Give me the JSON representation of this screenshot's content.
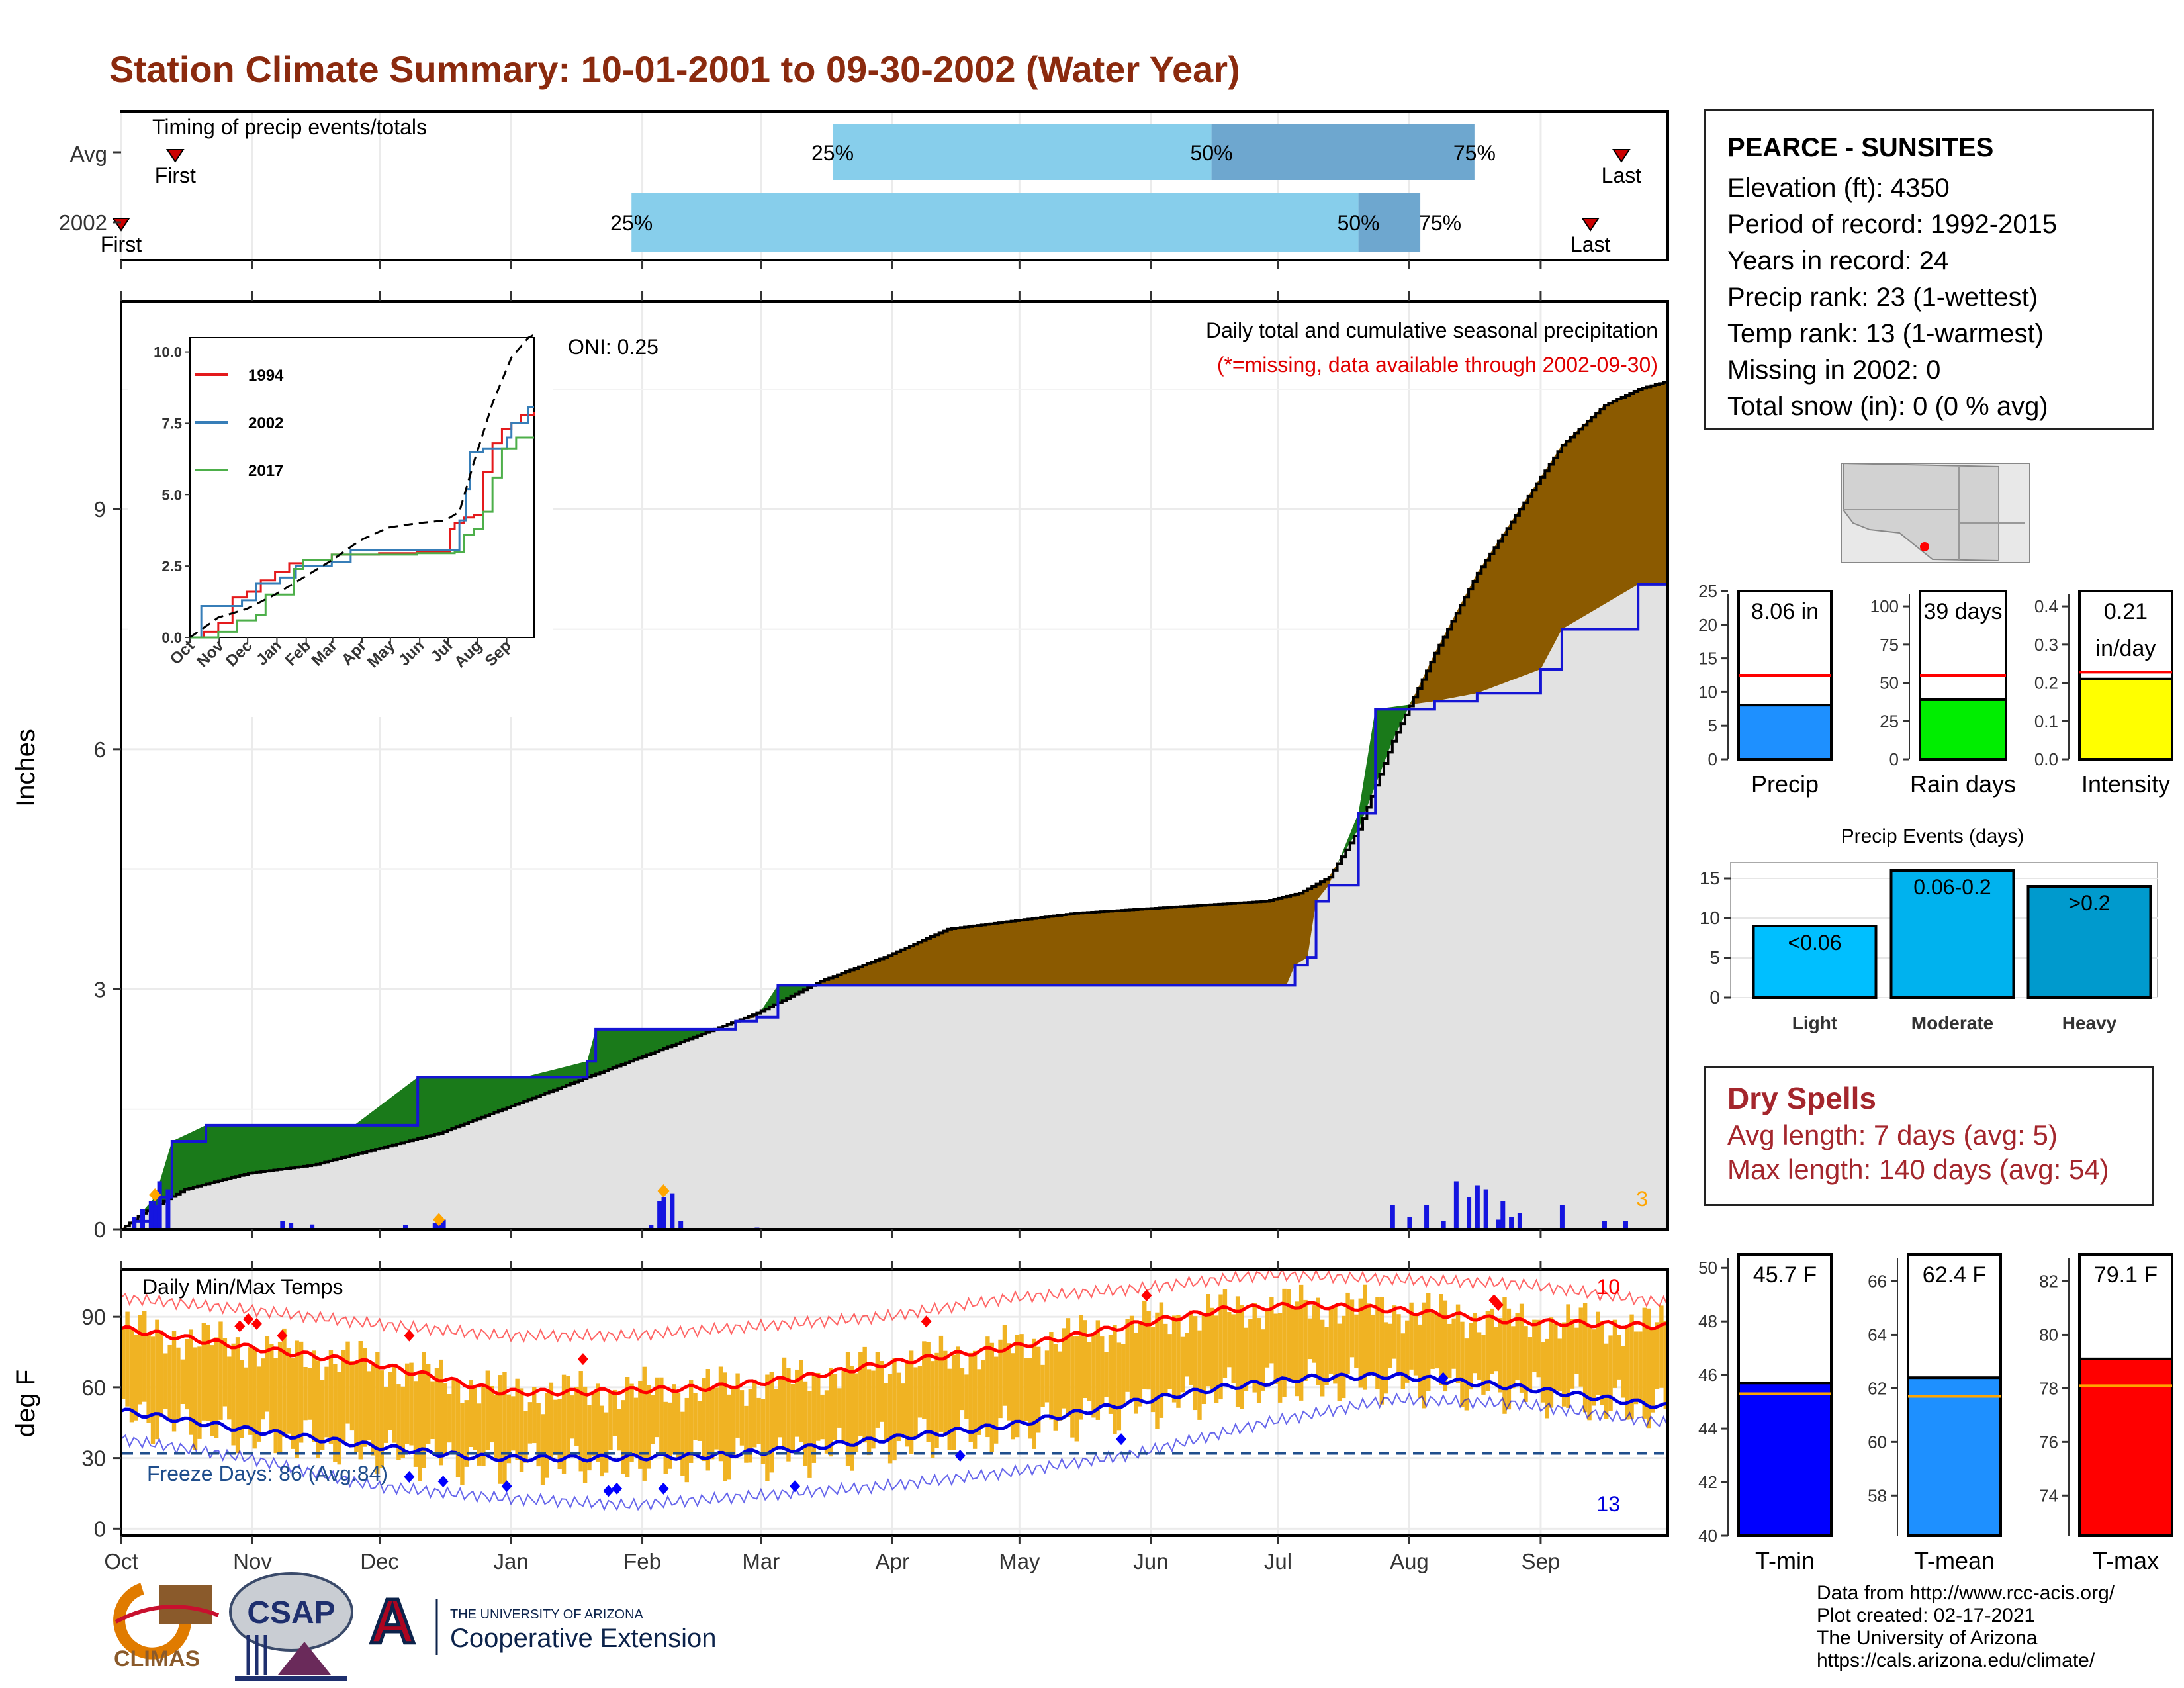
{
  "title": "Station Climate Summary: 10-01-2001 to 09-30-2002 (Water Year)",
  "timing": {
    "label": "Timing of precip events/totals",
    "rows": [
      {
        "label": "Avg",
        "first_label": "First",
        "last_label": "Last",
        "first": 0.035,
        "p25": 0.46,
        "p50": 0.705,
        "p75": 0.875,
        "last": 0.97
      },
      {
        "label": "2002",
        "first_label": "First",
        "last_label": "Last",
        "first": 0.0,
        "p25": 0.33,
        "p50": 0.8,
        "p75": 0.84,
        "last": 0.95
      }
    ],
    "pct_labels": [
      "25%",
      "50%",
      "75%"
    ],
    "colors": {
      "light": "#87ceeb",
      "dark": "#6ea7cf",
      "marker": "#cc0000"
    }
  },
  "main": {
    "ylabel": "Inches",
    "yticks": [
      "0",
      "3",
      "6",
      "9"
    ],
    "months": [
      "Oct",
      "Nov",
      "Dec",
      "Jan",
      "Feb",
      "Mar",
      "Apr",
      "May",
      "Jun",
      "Jul",
      "Aug",
      "Sep"
    ],
    "title_line1": "Daily total and cumulative seasonal precipitation",
    "title_line2": "(*=missing, data available through 2002-09-30)",
    "oni": "ONI: 0.25",
    "corner_count": "3"
  },
  "chart_data": [
    {
      "type": "area",
      "name": "cumulative-precip",
      "x_units": "day of water year",
      "series": [
        {
          "name": "2002",
          "x": [
            0,
            3,
            8,
            12,
            20,
            55,
            70,
            95,
            110,
            112,
            140,
            145,
            150,
            155,
            165,
            170,
            175,
            245,
            250,
            255,
            260,
            268,
            275,
            277,
            280,
            282,
            285,
            292,
            296,
            310,
            320,
            335,
            340,
            358,
            365
          ],
          "y": [
            0,
            0.1,
            0.4,
            1.1,
            1.3,
            1.3,
            1.9,
            1.9,
            2.1,
            2.5,
            2.5,
            2.6,
            2.65,
            3.05,
            3.05,
            3.05,
            3.05,
            3.05,
            3.05,
            3.05,
            3.05,
            3.05,
            3.05,
            3.3,
            3.4,
            4.1,
            4.3,
            5.2,
            6.5,
            6.6,
            6.7,
            7.0,
            7.5,
            8.06,
            8.06
          ]
        },
        {
          "name": "Avg",
          "x": [
            0,
            5,
            15,
            30,
            45,
            60,
            75,
            90,
            105,
            120,
            135,
            150,
            165,
            180,
            195,
            210,
            225,
            240,
            255,
            270,
            278,
            285,
            292,
            300,
            310,
            320,
            330,
            340,
            350,
            358,
            365
          ],
          "y": [
            0,
            0.2,
            0.5,
            0.7,
            0.8,
            1.0,
            1.2,
            1.5,
            1.8,
            2.1,
            2.4,
            2.7,
            3.1,
            3.4,
            3.75,
            3.85,
            3.95,
            4.0,
            4.05,
            4.1,
            4.2,
            4.4,
            5.0,
            6.1,
            7.2,
            8.2,
            9.0,
            9.8,
            10.3,
            10.5,
            10.6
          ]
        }
      ],
      "daily_precip": {
        "x": [
          3,
          5,
          7,
          8,
          9,
          11,
          38,
          40,
          45,
          67,
          74,
          75,
          76,
          125,
          127,
          128,
          130,
          132,
          150,
          300,
          304,
          308,
          312,
          315,
          318,
          320,
          322,
          325,
          326,
          328,
          330,
          340,
          350,
          355
        ],
        "y": [
          0.15,
          0.25,
          0.35,
          0.3,
          0.6,
          0.5,
          0.1,
          0.08,
          0.06,
          0.05,
          0.08,
          0.06,
          0.12,
          0.05,
          0.35,
          0.4,
          0.45,
          0.1,
          0.02,
          0.3,
          0.15,
          0.3,
          0.1,
          0.6,
          0.4,
          0.55,
          0.5,
          0.12,
          0.35,
          0.15,
          0.2,
          0.3,
          0.1,
          0.1
        ]
      },
      "ylim": [
        0,
        11.6
      ],
      "colors": {
        "above": "#8b5a00",
        "below": "#1a7a1a",
        "base": "#e2e2e2",
        "year_line": "#1515d4",
        "daily": "#1515e0"
      }
    },
    {
      "type": "line",
      "name": "inset-cumulative",
      "categories": [
        "Oct",
        "Nov",
        "Dec",
        "Jan",
        "Feb",
        "Mar",
        "Apr",
        "May",
        "Jun",
        "Jul",
        "Aug",
        "Sep"
      ],
      "yticks": [
        "0.0",
        "2.5",
        "5.0",
        "7.5",
        "10.0"
      ],
      "ylim": [
        0,
        10.5
      ],
      "series": [
        {
          "name": "1994",
          "color": "#e41a1c",
          "x": [
            0,
            15,
            30,
            45,
            60,
            75,
            90,
            105,
            120,
            150,
            180,
            200,
            240,
            270,
            275,
            280,
            290,
            300,
            310,
            320,
            330,
            340,
            350,
            364
          ],
          "y": [
            0,
            0.2,
            0.5,
            1.4,
            1.6,
            2.0,
            2.3,
            2.6,
            2.7,
            2.9,
            2.9,
            2.95,
            3.0,
            3.0,
            3.8,
            4.0,
            4.2,
            4.3,
            5.8,
            6.8,
            7.3,
            7.5,
            7.8,
            7.9
          ]
        },
        {
          "name": "2002",
          "color": "#377eb8",
          "x": [
            0,
            12,
            55,
            70,
            95,
            112,
            150,
            170,
            250,
            275,
            285,
            292,
            296,
            310,
            335,
            340,
            358,
            364
          ],
          "y": [
            0,
            1.1,
            1.3,
            1.9,
            2.1,
            2.5,
            2.65,
            3.05,
            3.05,
            3.05,
            4.1,
            5.2,
            6.5,
            6.6,
            7.0,
            7.5,
            8.06,
            8.06
          ]
        },
        {
          "name": "2017",
          "color": "#4daf4a",
          "x": [
            0,
            30,
            50,
            70,
            80,
            110,
            120,
            150,
            180,
            240,
            280,
            290,
            300,
            310,
            320,
            330,
            345,
            364
          ],
          "y": [
            0,
            0.2,
            0.6,
            0.8,
            1.5,
            2.4,
            2.7,
            2.9,
            2.9,
            2.95,
            3.0,
            3.6,
            3.8,
            4.4,
            5.6,
            6.6,
            7.0,
            7.0
          ]
        },
        {
          "name": "Avg",
          "color": "#000000",
          "dashed": true,
          "x": [
            0,
            30,
            60,
            90,
            120,
            150,
            180,
            210,
            240,
            270,
            285,
            300,
            320,
            340,
            358,
            364
          ],
          "y": [
            0,
            0.7,
            1.0,
            1.5,
            2.1,
            2.7,
            3.4,
            3.85,
            4.0,
            4.1,
            4.4,
            6.1,
            8.2,
            9.8,
            10.5,
            10.6
          ]
        }
      ]
    },
    {
      "type": "bar",
      "name": "precip-totals",
      "categories": [
        "Precip",
        "Rain days",
        "Intensity"
      ],
      "values": [
        8.06,
        39,
        0.21
      ],
      "avg": [
        12.5,
        55,
        0.228
      ],
      "value_labels": [
        "8.06 in",
        "39 days",
        "0.21 in/day"
      ],
      "ymax": [
        25,
        110,
        0.44
      ],
      "yticks": [
        [
          "0",
          "5",
          "10",
          "15",
          "20",
          "25"
        ],
        [
          "0",
          "25",
          "50",
          "75",
          "100"
        ],
        [
          "0.0",
          "0.1",
          "0.2",
          "0.3",
          "0.4"
        ]
      ],
      "tick_values": [
        [
          0,
          5,
          10,
          15,
          20,
          25
        ],
        [
          0,
          25,
          50,
          75,
          100
        ],
        [
          0,
          0.1,
          0.2,
          0.3,
          0.4
        ]
      ],
      "colors": [
        "#1e90ff",
        "#00ee00",
        "#ffff00"
      ]
    },
    {
      "type": "bar",
      "name": "precip-events",
      "title": "Precip Events (days)",
      "categories": [
        "Light",
        "Moderate",
        "Heavy"
      ],
      "values": [
        9,
        16,
        14
      ],
      "value_labels": [
        "<0.06",
        "0.06-0.2",
        ">0.2"
      ],
      "yticks": [
        "0",
        "5",
        "10",
        "15"
      ],
      "ylim": [
        0,
        17
      ],
      "colors": [
        "#00bfff",
        "#00b2ee",
        "#009acd"
      ]
    },
    {
      "type": "bar",
      "name": "daily-temps",
      "title": "Daily Min/Max Temps",
      "ylabel": "deg F",
      "yticks": [
        "0",
        "30",
        "60",
        "90"
      ],
      "ylim": [
        -3,
        110
      ],
      "freeze_label": "Freeze Days: 86 (Avg:84)",
      "freeze_line": 32,
      "hot_count": "10",
      "cold_count": "13",
      "colors": {
        "bars": "#f0b323",
        "max": "#ff0000",
        "min": "#0000dd",
        "freeze": "#1f4e8c"
      },
      "normal_max": {
        "x": [
          0,
          30,
          60,
          80,
          90,
          110,
          140,
          160,
          180,
          210,
          240,
          260,
          280,
          300,
          330,
          364
        ],
        "y": [
          85,
          77,
          70,
          62,
          58,
          58,
          60,
          64,
          70,
          77,
          87,
          93,
          95,
          93,
          88,
          86
        ]
      },
      "normal_min": {
        "x": [
          0,
          30,
          60,
          80,
          90,
          110,
          140,
          160,
          180,
          210,
          240,
          260,
          280,
          300,
          330,
          364
        ],
        "y": [
          50,
          42,
          35,
          31,
          30,
          30,
          31,
          34,
          38,
          44,
          54,
          60,
          64,
          65,
          60,
          52
        ]
      },
      "record_max": {
        "x": [
          0,
          30,
          60,
          90,
          120,
          150,
          180,
          210,
          240,
          270,
          300,
          330,
          364
        ],
        "y": [
          98,
          93,
          87,
          82,
          82,
          86,
          90,
          98,
          102,
          108,
          106,
          104,
          96
        ]
      },
      "record_min": {
        "x": [
          0,
          30,
          60,
          90,
          120,
          150,
          180,
          210,
          240,
          270,
          300,
          330,
          364
        ],
        "y": [
          38,
          30,
          18,
          13,
          10,
          14,
          18,
          24,
          32,
          45,
          55,
          53,
          45
        ]
      },
      "stats": {
        "categories": [
          "T-min",
          "T-mean",
          "T-max"
        ],
        "values": [
          45.7,
          62.4,
          79.1
        ],
        "avg": [
          45.3,
          61.7,
          78.1
        ],
        "value_labels": [
          "45.7 F",
          "62.4 F",
          "79.1 F"
        ],
        "ylims": [
          [
            40,
            50.5
          ],
          [
            56.5,
            67
          ],
          [
            72.5,
            83
          ]
        ],
        "tick_values": [
          [
            40,
            42,
            44,
            46,
            48,
            50
          ],
          [
            58,
            60,
            62,
            64,
            66
          ],
          [
            74,
            76,
            78,
            80,
            82
          ]
        ],
        "colors": [
          "#0000ff",
          "#1e90ff",
          "#ff0000"
        ]
      }
    }
  ],
  "station": {
    "name": "PEARCE - SUNSITES",
    "elevation": "Elevation (ft): 4350",
    "period": "Period of record: 1992-2015",
    "years": "Years in record: 24",
    "precip_rank": "Precip rank: 23 (1-wettest)",
    "temp_rank": "Temp rank: 13 (1-warmest)",
    "missing": "Missing in 2002: 0",
    "snow": "Total snow (in): 0 (0 % avg)"
  },
  "dry_spells": {
    "title": "Dry Spells",
    "avg": "Avg length: 7 days (avg: 5)",
    "max": "Max length: 140 days (avg: 54)"
  },
  "credits": {
    "line1": "Data from http://www.rcc-acis.org/",
    "line2": "Plot created: 02-17-2021",
    "line3": "The University of Arizona",
    "line4": "https://cals.arizona.edu/climate/"
  },
  "logos": {
    "climas": "CLIMAS",
    "csap": "CSAP",
    "ua_small": "THE UNIVERSITY OF ARIZONA",
    "ua_big": "Cooperative Extension",
    "ua_letter": "A"
  }
}
